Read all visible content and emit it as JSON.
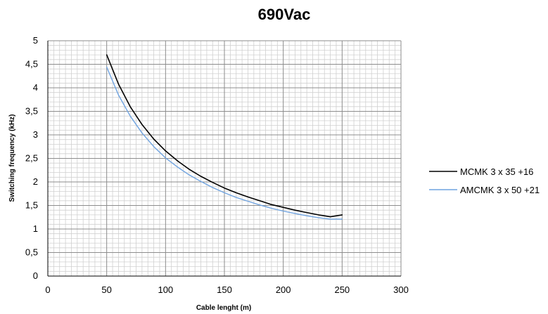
{
  "chart_data": {
    "type": "line",
    "title": "690Vac",
    "xlabel": "Cable lenght (m)",
    "ylabel": "Switching frequency (kHz)",
    "xlim": [
      0,
      300
    ],
    "ylim": [
      0,
      5
    ],
    "x_ticks": [
      0,
      50,
      100,
      150,
      200,
      250,
      300
    ],
    "x_tick_labels": [
      "0",
      "50",
      "100",
      "150",
      "200",
      "250",
      "300"
    ],
    "y_ticks": [
      0,
      0.5,
      1,
      1.5,
      2,
      2.5,
      3,
      3.5,
      4,
      4.5,
      5
    ],
    "y_tick_labels": [
      "0",
      "0,5",
      "1",
      "1,5",
      "2",
      "2,5",
      "3",
      "3,5",
      "4",
      "4,5",
      "5"
    ],
    "grid": true,
    "grid_minor": true,
    "legend_position": "right",
    "series": [
      {
        "name": "MCMK 3 x 35 +16",
        "color": "#000000",
        "x": [
          50,
          60,
          70,
          80,
          90,
          100,
          110,
          120,
          130,
          140,
          150,
          160,
          170,
          180,
          190,
          200,
          210,
          220,
          230,
          240,
          250
        ],
        "y": [
          4.7,
          4.08,
          3.6,
          3.22,
          2.91,
          2.66,
          2.45,
          2.27,
          2.12,
          1.99,
          1.87,
          1.77,
          1.68,
          1.6,
          1.52,
          1.46,
          1.4,
          1.35,
          1.3,
          1.26,
          1.3
        ]
      },
      {
        "name": "AMCMK 3 x 50 +21",
        "color": "#6fa3e0",
        "x": [
          50,
          60,
          70,
          80,
          90,
          100,
          110,
          120,
          130,
          140,
          150,
          160,
          170,
          180,
          190,
          200,
          210,
          220,
          230,
          240,
          250
        ],
        "y": [
          4.44,
          3.85,
          3.4,
          3.04,
          2.75,
          2.51,
          2.32,
          2.15,
          2.01,
          1.88,
          1.77,
          1.67,
          1.59,
          1.51,
          1.44,
          1.38,
          1.33,
          1.28,
          1.24,
          1.21,
          1.21
        ]
      }
    ]
  }
}
